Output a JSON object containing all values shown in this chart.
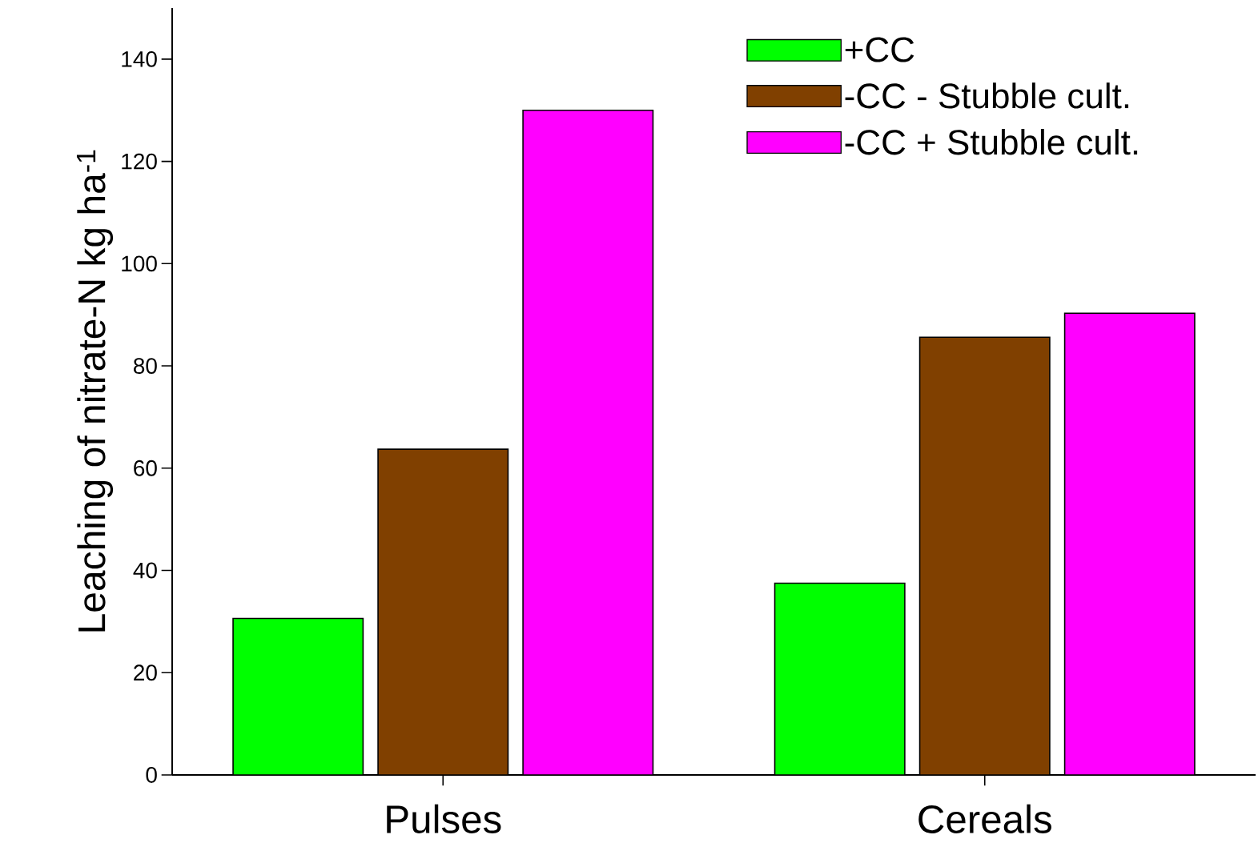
{
  "chart_data": {
    "type": "bar",
    "ylabel": "Leaching of nitrate-N kg ha$^{-1}$",
    "categories": [
      "Pulses",
      "Cereals"
    ],
    "series": [
      {
        "name": "+CC",
        "color": "#00ff00",
        "values": [
          30.6,
          37.5
        ]
      },
      {
        "name": "-CC - Stubble cult.",
        "color": "#804000",
        "values": [
          63.7,
          85.6
        ]
      },
      {
        "name": "-CC + Stubble cult.",
        "color": "#ff00ff",
        "values": [
          130.0,
          90.3
        ]
      }
    ],
    "ylim": [
      0,
      150
    ],
    "yticks": [
      0,
      20,
      40,
      60,
      80,
      100,
      120,
      140
    ],
    "legend": "top right",
    "grid": false
  }
}
